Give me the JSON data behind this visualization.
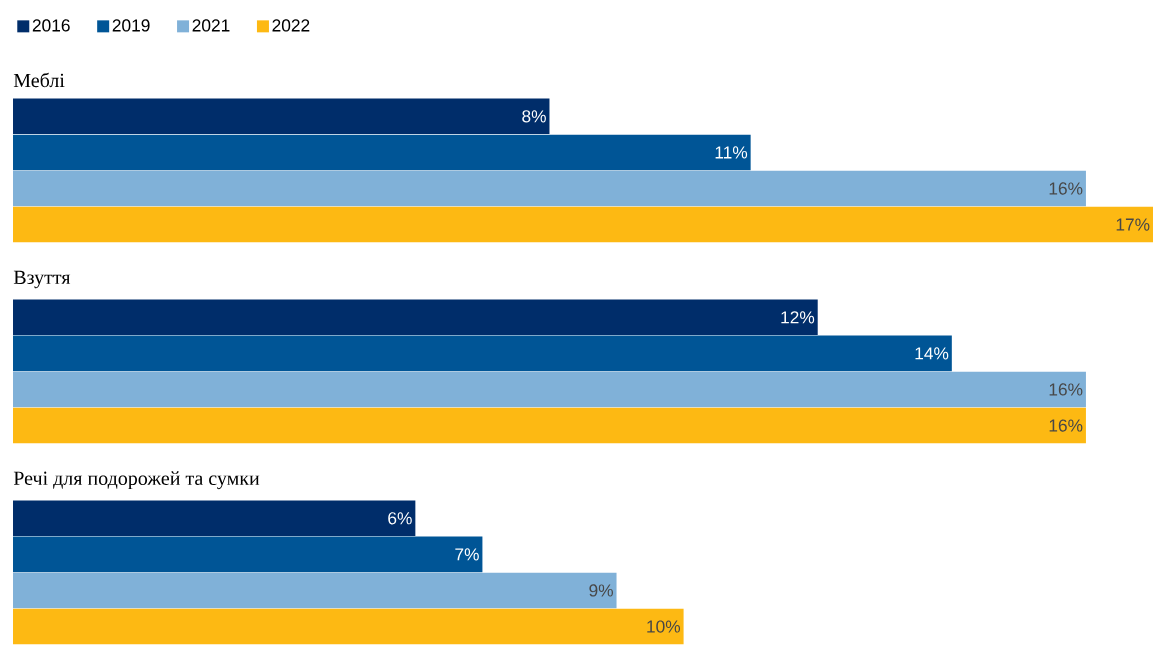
{
  "chart_data": {
    "type": "bar",
    "orientation": "horizontal",
    "categories": [
      "Меблі",
      "Взуття",
      "Речі для подорожей та сумки"
    ],
    "series": [
      {
        "name": "2016",
        "color": "#002d6a",
        "values": [
          8,
          12,
          6
        ],
        "value_labels": [
          "8%",
          "12%",
          "6%"
        ]
      },
      {
        "name": "2019",
        "color": "#005596",
        "values": [
          11,
          14,
          7
        ],
        "value_labels": [
          "11%",
          "14%",
          "7%"
        ]
      },
      {
        "name": "2021",
        "color": "#80b1d8",
        "values": [
          16,
          16,
          9
        ],
        "value_labels": [
          "16%",
          "16%",
          "9%"
        ]
      },
      {
        "name": "2022",
        "color": "#fdb913",
        "values": [
          17,
          16,
          10
        ],
        "value_labels": [
          "17%",
          "16%",
          "10%"
        ]
      }
    ],
    "xlim": [
      0,
      17
    ],
    "legend": "top left"
  }
}
